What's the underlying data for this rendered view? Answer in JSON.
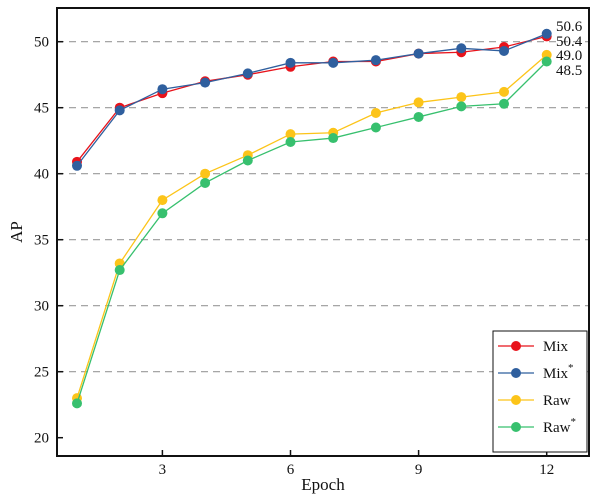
{
  "chart_data": {
    "type": "line",
    "title": "",
    "xlabel": "Epoch",
    "ylabel": "AP",
    "x": [
      1,
      2,
      3,
      4,
      5,
      6,
      7,
      8,
      9,
      10,
      11,
      12
    ],
    "xticks": [
      3,
      6,
      9,
      12
    ],
    "yticks": [
      20,
      25,
      30,
      35,
      40,
      45,
      50
    ],
    "xlim": [
      0.5,
      13.0
    ],
    "ylim": [
      20,
      52.2
    ],
    "grid": "horizontal dashed",
    "legend_position": "bottom-right",
    "series": [
      {
        "name": "Mix",
        "sup": "",
        "color": "#e8131b",
        "values": [
          40.9,
          45.0,
          46.1,
          47.0,
          47.5,
          48.1,
          48.5,
          48.5,
          49.1,
          49.2,
          49.6,
          50.4
        ],
        "end_label": "50.4"
      },
      {
        "name": "Mix",
        "sup": "*",
        "color": "#2f5f9e",
        "values": [
          40.6,
          44.8,
          46.4,
          46.9,
          47.6,
          48.4,
          48.4,
          48.6,
          49.1,
          49.5,
          49.3,
          50.6
        ],
        "end_label": "50.6"
      },
      {
        "name": "Raw",
        "sup": "",
        "color": "#fcc419",
        "values": [
          23.0,
          33.2,
          38.0,
          40.0,
          41.4,
          43.0,
          43.1,
          44.6,
          45.4,
          45.8,
          46.2,
          49.0
        ],
        "end_label": "49.0"
      },
      {
        "name": "Raw",
        "sup": "*",
        "color": "#37c06e",
        "values": [
          22.6,
          32.7,
          37.0,
          39.3,
          41.0,
          42.4,
          42.7,
          43.5,
          44.3,
          45.1,
          45.3,
          48.5
        ],
        "end_label": "48.5"
      }
    ]
  }
}
